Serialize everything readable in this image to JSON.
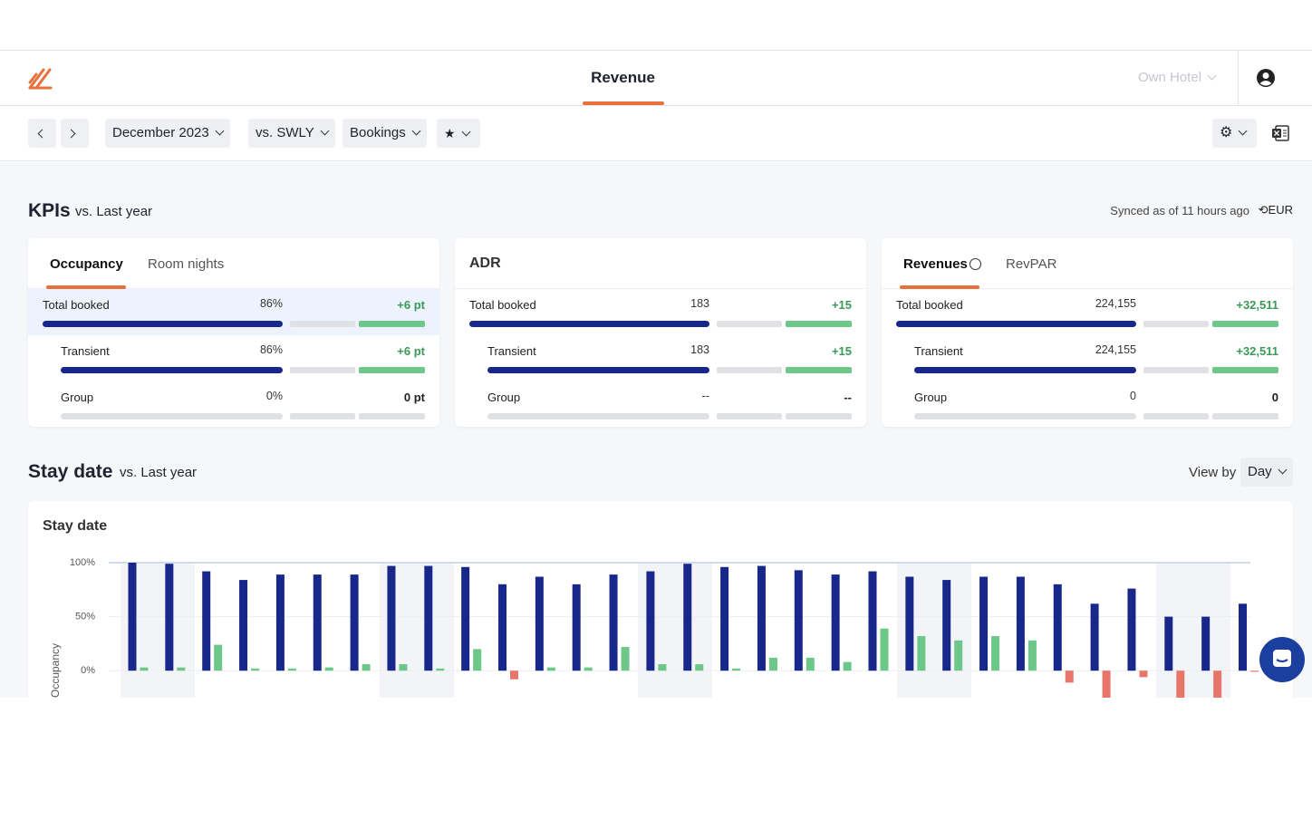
{
  "header": {
    "title": "Revenue",
    "hotel": "Own Hotel"
  },
  "toolbar": {
    "period": "December 2023",
    "compare": "vs. SWLY",
    "metric": "Bookings"
  },
  "kpis": {
    "title": "KPIs",
    "subtitle": "vs. Last year",
    "sync": "Synced as of 11 hours ago",
    "currency": "EUR",
    "cards": [
      {
        "tabs": [
          "Occupancy",
          "Room nights"
        ],
        "rows": [
          {
            "label": "Total booked",
            "value": "86%",
            "delta": "+6 pt"
          },
          {
            "label": "Transient",
            "value": "86%",
            "delta": "+6 pt"
          },
          {
            "label": "Group",
            "value": "0%",
            "delta": "0 pt"
          }
        ]
      },
      {
        "title": "ADR",
        "rows": [
          {
            "label": "Total booked",
            "value": "183",
            "delta": "+15"
          },
          {
            "label": "Transient",
            "value": "183",
            "delta": "+15"
          },
          {
            "label": "Group",
            "value": "--",
            "delta": "--"
          }
        ]
      },
      {
        "tabs": [
          "Revenues",
          "RevPAR"
        ],
        "rows": [
          {
            "label": "Total booked",
            "value": "224,155",
            "delta": "+32,511"
          },
          {
            "label": "Transient",
            "value": "224,155",
            "delta": "+32,511"
          },
          {
            "label": "Group",
            "value": "0",
            "delta": "0"
          }
        ]
      }
    ]
  },
  "stay": {
    "title": "Stay date",
    "subtitle": "vs. Last year",
    "view_by": "View by",
    "view": "Day"
  },
  "chart_data": {
    "type": "bar",
    "title": "Stay date",
    "y_label": "Occupancy",
    "series": [
      {
        "color": "#18288a",
        "values": [
          100,
          99,
          92,
          84,
          89,
          89,
          89,
          97,
          97,
          96,
          80,
          87,
          80,
          89,
          92,
          99,
          96,
          97,
          93,
          89,
          92,
          87,
          84,
          87,
          87,
          80,
          62,
          76,
          50,
          50,
          62
        ]
      },
      {
        "color": "#6cc788",
        "negative_color": "#e8756a",
        "values": [
          3,
          3,
          24,
          2,
          2,
          3,
          6,
          6,
          2,
          20,
          -8,
          3,
          3,
          22,
          6,
          6,
          2,
          12,
          12,
          8,
          39,
          32,
          28,
          32,
          28,
          -11,
          -26,
          -6,
          -26,
          -26,
          -1
        ]
      }
    ],
    "ylim": [
      -25,
      100
    ],
    "yticks": [
      {
        "value": 0,
        "label": "0%"
      },
      {
        "value": 50,
        "label": "50%"
      },
      {
        "value": 100,
        "label": "100%"
      }
    ],
    "grid": true
  }
}
